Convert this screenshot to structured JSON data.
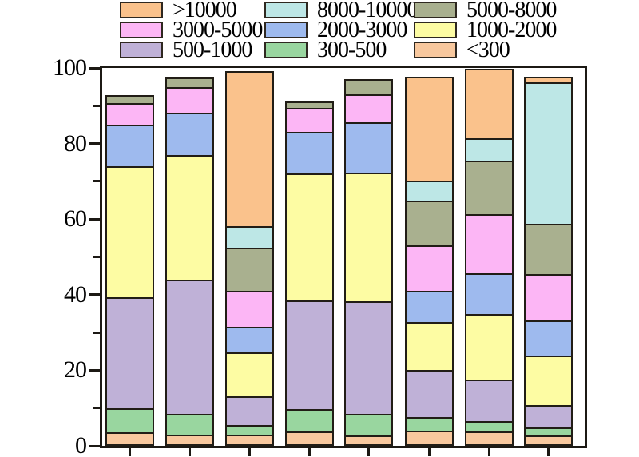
{
  "figure": {
    "background": "#FFFFFF",
    "frame_color": "#1C1914",
    "text_color": "#000000"
  },
  "legend": {
    "position": "top",
    "rows": 3,
    "columns": 3,
    "items": [
      {
        "label": ">10000",
        "color": "#FAC28C"
      },
      {
        "label": "8000-10000",
        "color": "#BDE7E6"
      },
      {
        "label": "5000-8000",
        "color": "#A9B08F"
      },
      {
        "label": "3000-5000",
        "color": "#FCB6F5"
      },
      {
        "label": "2000-3000",
        "color": "#9EBAEE"
      },
      {
        "label": "1000-2000",
        "color": "#FDFCA3"
      },
      {
        "label": "500-1000",
        "color": "#BFB1D7"
      },
      {
        "label": "300-500",
        "color": "#99D69F"
      },
      {
        "label": "<300",
        "color": "#F8C89E"
      }
    ]
  },
  "y_axis": {
    "major_tick_labels": [
      "0",
      "20",
      "40",
      "60",
      "80",
      "100"
    ],
    "major_tick_values": [
      0,
      20,
      40,
      60,
      80,
      100
    ],
    "minor_tick_values": [
      10,
      30,
      50,
      70,
      90
    ]
  },
  "x_axis": {
    "tick_count": 8,
    "tick_labels_visible": false
  },
  "chart_data": {
    "type": "bar",
    "stacked": true,
    "title": "",
    "xlabel": "",
    "ylabel": "",
    "ylim": [
      0,
      100
    ],
    "grid": false,
    "legend_position": "top",
    "categories": [
      "",
      "",
      "",
      "",
      "",
      "",
      "",
      ""
    ],
    "series": [
      {
        "name": "<300",
        "color": "#F8C89E",
        "values": [
          3.1,
          2.5,
          2.5,
          3.4,
          2.4,
          3.7,
          3.4,
          2.4
        ]
      },
      {
        "name": "300-500",
        "color": "#99D69F",
        "values": [
          6.5,
          5.7,
          2.7,
          6.0,
          5.6,
          3.6,
          2.7,
          2.0
        ]
      },
      {
        "name": "500-1000",
        "color": "#BFB1D7",
        "values": [
          29.7,
          35.8,
          7.6,
          28.9,
          30.1,
          12.6,
          11.1,
          6.1
        ]
      },
      {
        "name": "1000-2000",
        "color": "#FDFCA3",
        "values": [
          34.9,
          33.1,
          11.7,
          34.0,
          34.4,
          12.8,
          17.6,
          13.2
        ]
      },
      {
        "name": "2000-3000",
        "color": "#9EBAEE",
        "values": [
          11.2,
          11.3,
          6.8,
          11.1,
          13.4,
          8.3,
          10.9,
          9.3
        ]
      },
      {
        "name": "3000-5000",
        "color": "#FCB6F5",
        "values": [
          5.7,
          7.0,
          9.7,
          6.4,
          7.5,
          12.1,
          15.6,
          12.4
        ]
      },
      {
        "name": "5000-8000",
        "color": "#A9B08F",
        "values": [
          1.7,
          2.1,
          11.4,
          1.4,
          3.6,
          11.9,
          14.4,
          13.4
        ]
      },
      {
        "name": "8000-10000",
        "color": "#BDE7E6",
        "values": [
          0,
          0,
          5.9,
          0,
          0,
          5.3,
          6.0,
          37.9
        ]
      },
      {
        "name": ">10000",
        "color": "#FAC28C",
        "values": [
          0,
          0,
          40.8,
          0,
          0,
          27.4,
          18.1,
          1.0
        ]
      }
    ],
    "bar_totals": [
      92.8,
      97.5,
      99.1,
      91.2,
      97.0,
      97.7,
      99.8,
      97.7
    ]
  }
}
